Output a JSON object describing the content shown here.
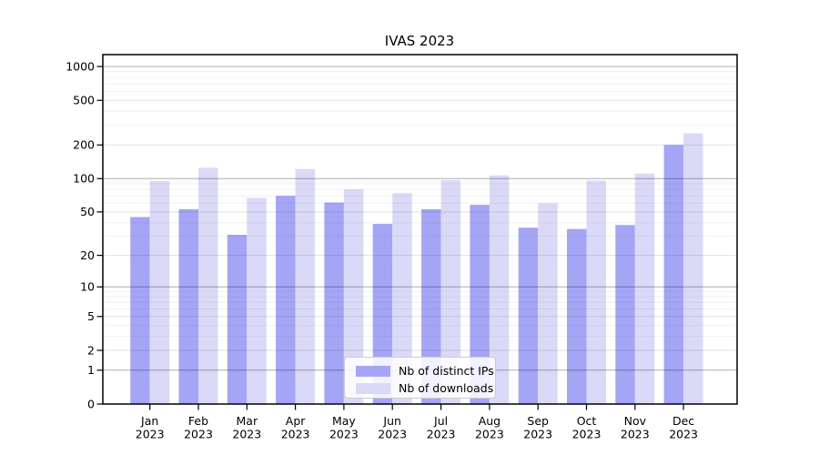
{
  "figure": {
    "title": "IVAS 2023"
  },
  "colors": {
    "distinct_ips_bar": "#a5a5f5",
    "downloads_bar": "#dadaf8",
    "axis": "#000000",
    "grid_decade": "rgba(0,0,0,0.32)",
    "grid_major": "rgba(0,0,0,0.12)",
    "grid_minor": "rgba(0,0,0,0.055)"
  },
  "chart_data": {
    "type": "bar",
    "title": "IVAS 2023",
    "categories": [
      "Jan",
      "Feb",
      "Mar",
      "Apr",
      "May",
      "Jun",
      "Jul",
      "Aug",
      "Sep",
      "Oct",
      "Nov",
      "Dec"
    ],
    "year": "2023",
    "series": [
      {
        "name": "Nb of distinct IPs",
        "color": "#a5a5f5",
        "values": [
          45,
          53,
          31,
          70,
          61,
          39,
          53,
          58,
          36,
          35,
          38,
          200
        ]
      },
      {
        "name": "Nb of downloads",
        "color": "#dadaf8",
        "values": [
          95,
          125,
          67,
          122,
          80,
          74,
          97,
          107,
          60,
          96,
          111,
          254
        ]
      }
    ],
    "xlabel": "",
    "ylabel": "",
    "yscale": "log1p",
    "ylim": [
      0,
      1270
    ],
    "yticks": [
      1000,
      500,
      200,
      100,
      50,
      20,
      10,
      5,
      2,
      1,
      0
    ],
    "minor_yticks": [
      3,
      4,
      6,
      7,
      8,
      9,
      30,
      40,
      60,
      70,
      80,
      90,
      300,
      400,
      600,
      700,
      800,
      900
    ],
    "grid": true,
    "legend_position": "lower center"
  }
}
